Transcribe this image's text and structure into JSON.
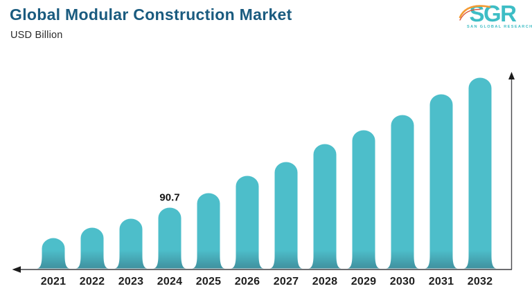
{
  "header": {
    "title": "Global Modular Construction Market",
    "subtitle": "USD Billion",
    "title_color": "#1A5B7F"
  },
  "logo": {
    "text": "SGR",
    "tagline": "SAN GLOBAL RESEARCH",
    "color": "#3DBDC5",
    "swoosh_color_primary": "#F49B33",
    "swoosh_color_secondary": "#D9573B"
  },
  "chart_data": {
    "type": "bar",
    "title": "Global Modular Construction Market",
    "ylabel": "USD Billion",
    "xlabel": "",
    "categories": [
      "2021",
      "2022",
      "2023",
      "2024",
      "2025",
      "2026",
      "2027",
      "2028",
      "2029",
      "2030",
      "2031",
      "2032"
    ],
    "values": [
      45.3,
      60.8,
      74.2,
      90.7,
      112.3,
      138.1,
      158.7,
      185.5,
      206.1,
      228.8,
      259.7,
      284.5
    ],
    "labeled_points": {
      "2024": "90.7"
    },
    "grid": false,
    "legend": false,
    "axis_arrows": true,
    "bar_color": "#4DBECA",
    "bar_color_bottom": "#3F8E9C",
    "axis_color": "#57585C",
    "arrow_color": "#1C1C1C",
    "tick_color": "#1E1E1E"
  }
}
